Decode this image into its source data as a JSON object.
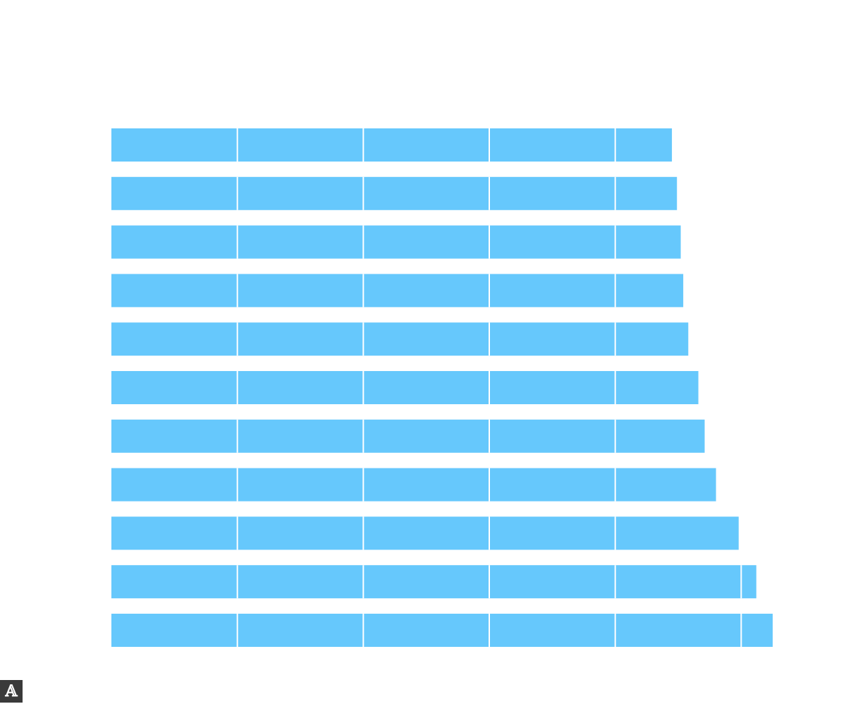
{
  "chart_data": {
    "type": "bar",
    "orientation": "horizontal",
    "title": "",
    "xlabel": "",
    "ylabel": "",
    "grid": false,
    "legend": "none",
    "bar_color": "#66c8fc",
    "separator_color": "#ffffff",
    "segment_unit": 1,
    "categories": [
      "",
      "",
      "",
      "",
      "",
      "",
      "",
      "",
      "",
      "",
      ""
    ],
    "values": [
      4.45,
      4.49,
      4.52,
      4.54,
      4.58,
      4.66,
      4.71,
      4.8,
      4.98,
      5.12,
      5.25
    ],
    "xlim": [
      0,
      5.25
    ]
  },
  "corner_icon": {
    "name": "font-icon",
    "glyph": "𝔸"
  }
}
